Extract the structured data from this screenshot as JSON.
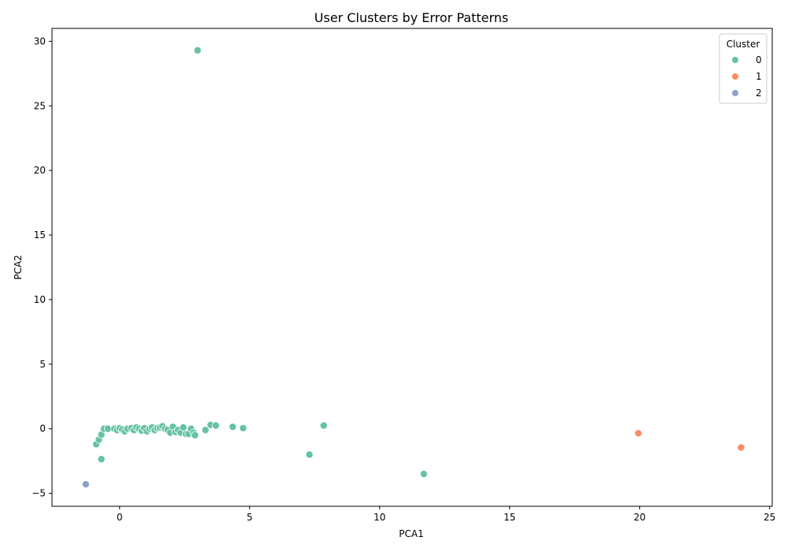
{
  "chart_data": {
    "type": "scatter",
    "title": "User Clusters by Error Patterns",
    "xlabel": "PCA1",
    "ylabel": "PCA2",
    "xlim": [
      -2.6,
      25.1
    ],
    "ylim": [
      -6.0,
      31.0
    ],
    "x_ticks": [
      0,
      5,
      10,
      15,
      20,
      25
    ],
    "y_ticks": [
      -5,
      0,
      5,
      10,
      15,
      20,
      25,
      30
    ],
    "grid": false,
    "legend": {
      "title": "Cluster",
      "position": "top-right"
    },
    "series": [
      {
        "name": "0",
        "color": "#66c2a5",
        "points": [
          [
            3.0,
            29.3
          ],
          [
            11.7,
            -3.5
          ],
          [
            7.3,
            -2.0
          ],
          [
            7.85,
            0.25
          ],
          [
            -0.7,
            -2.35
          ],
          [
            -0.9,
            -1.2
          ],
          [
            -0.8,
            -0.85
          ],
          [
            -0.7,
            -0.45
          ],
          [
            -0.6,
            0.0
          ],
          [
            -0.45,
            0.0
          ],
          [
            -0.2,
            0.0
          ],
          [
            -0.1,
            -0.1
          ],
          [
            0.0,
            0.05
          ],
          [
            0.1,
            -0.05
          ],
          [
            0.2,
            -0.2
          ],
          [
            0.3,
            0.0
          ],
          [
            0.45,
            0.05
          ],
          [
            0.55,
            -0.1
          ],
          [
            0.65,
            0.1
          ],
          [
            0.75,
            0.0
          ],
          [
            0.85,
            -0.15
          ],
          [
            0.95,
            0.05
          ],
          [
            1.05,
            -0.2
          ],
          [
            1.15,
            0.0
          ],
          [
            1.25,
            0.1
          ],
          [
            1.35,
            -0.1
          ],
          [
            1.45,
            0.05
          ],
          [
            1.55,
            0.1
          ],
          [
            1.65,
            0.2
          ],
          [
            1.75,
            0.0
          ],
          [
            1.85,
            -0.1
          ],
          [
            1.95,
            -0.3
          ],
          [
            2.05,
            0.15
          ],
          [
            2.15,
            -0.25
          ],
          [
            2.25,
            -0.1
          ],
          [
            2.35,
            -0.3
          ],
          [
            2.45,
            0.1
          ],
          [
            2.55,
            -0.4
          ],
          [
            2.65,
            -0.4
          ],
          [
            2.75,
            0.0
          ],
          [
            2.85,
            -0.3
          ],
          [
            2.9,
            -0.5
          ],
          [
            3.3,
            -0.1
          ],
          [
            3.5,
            0.3
          ],
          [
            3.7,
            0.25
          ],
          [
            4.35,
            0.15
          ],
          [
            4.75,
            0.05
          ]
        ]
      },
      {
        "name": "1",
        "color": "#fc8d62",
        "points": [
          [
            19.95,
            -0.35
          ],
          [
            23.9,
            -1.45
          ]
        ]
      },
      {
        "name": "2",
        "color": "#8da0cb",
        "points": [
          [
            -1.3,
            -4.3
          ]
        ]
      }
    ]
  }
}
